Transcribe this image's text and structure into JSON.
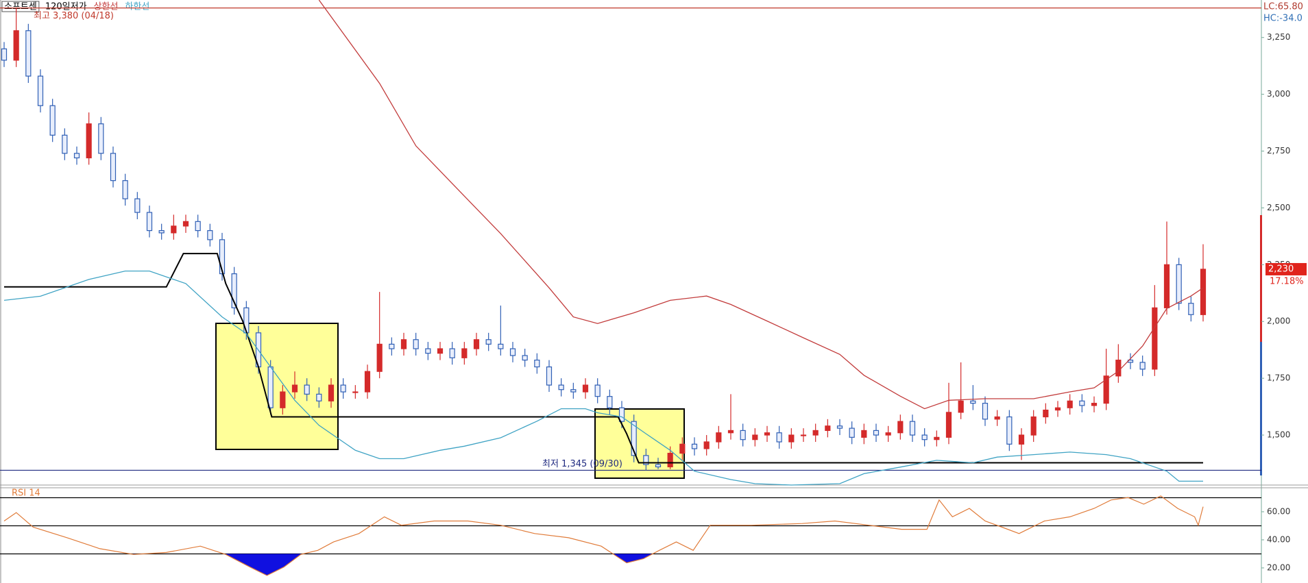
{
  "chart_data": [
    {
      "type": "candlestick",
      "title": "소프트센",
      "xlim": [
        0,
        99
      ],
      "ylim": [
        1280,
        3415
      ],
      "yticks": [
        {
          "value": 1500,
          "label": "1,500"
        },
        {
          "value": 1750,
          "label": "1,750"
        },
        {
          "value": 2000,
          "label": "2,000"
        },
        {
          "value": 2250,
          "label": "2,250"
        },
        {
          "value": 2500,
          "label": "2,500"
        },
        {
          "value": 2750,
          "label": "2,750"
        },
        {
          "value": 3000,
          "label": "3,000"
        },
        {
          "value": 3250,
          "label": "3,250"
        }
      ],
      "up_color": "#d42a2a",
      "down_color": "#2f5fb5",
      "open": [
        3200,
        3150,
        3280,
        3080,
        2950,
        2820,
        2740,
        2720,
        2870,
        2740,
        2620,
        2540,
        2480,
        2400,
        2390,
        2420,
        2440,
        2400,
        2360,
        2210,
        2060,
        1950,
        1800,
        1620,
        1690,
        1720,
        1680,
        1650,
        1720,
        1690,
        1690,
        1780,
        1900,
        1880,
        1920,
        1880,
        1860,
        1880,
        1840,
        1880,
        1920,
        1900,
        1880,
        1850,
        1830,
        1800,
        1720,
        1700,
        1690,
        1720,
        1670,
        1620,
        1560,
        1410,
        1370,
        1360,
        1420,
        1460,
        1440,
        1470,
        1510,
        1520,
        1480,
        1500,
        1510,
        1470,
        1500,
        1500,
        1520,
        1540,
        1530,
        1490,
        1520,
        1500,
        1510,
        1560,
        1500,
        1480,
        1490,
        1600,
        1650,
        1640,
        1570,
        1580,
        1460,
        1500,
        1580,
        1610,
        1620,
        1650,
        1630,
        1640,
        1760,
        1830,
        1820,
        1790,
        2060,
        2250,
        2080,
        2030
      ],
      "high": [
        3230,
        3380,
        3310,
        3110,
        2980,
        2850,
        2770,
        2920,
        2900,
        2770,
        2650,
        2570,
        2510,
        2430,
        2470,
        2470,
        2470,
        2430,
        2390,
        2240,
        2090,
        1980,
        1830,
        1720,
        1780,
        1750,
        1710,
        1750,
        1750,
        1720,
        1810,
        2130,
        1930,
        1950,
        1950,
        1910,
        1910,
        1910,
        1910,
        1950,
        1950,
        2070,
        1910,
        1880,
        1860,
        1830,
        1750,
        1730,
        1750,
        1750,
        1700,
        1650,
        1590,
        1440,
        1400,
        1450,
        1490,
        1490,
        1500,
        1540,
        1680,
        1550,
        1530,
        1540,
        1540,
        1530,
        1530,
        1550,
        1570,
        1570,
        1560,
        1550,
        1550,
        1540,
        1590,
        1590,
        1530,
        1520,
        1730,
        1820,
        1720,
        1670,
        1610,
        1610,
        1530,
        1610,
        1640,
        1650,
        1680,
        1680,
        1670,
        1880,
        1900,
        1860,
        1850,
        2160,
        2440,
        2280,
        2110,
        2340
      ],
      "low": [
        3120,
        3120,
        3050,
        2920,
        2790,
        2710,
        2690,
        2690,
        2710,
        2590,
        2510,
        2450,
        2370,
        2360,
        2360,
        2390,
        2370,
        2330,
        2180,
        2030,
        1920,
        1770,
        1590,
        1590,
        1660,
        1650,
        1620,
        1620,
        1660,
        1660,
        1660,
        1750,
        1850,
        1850,
        1850,
        1830,
        1830,
        1810,
        1810,
        1850,
        1870,
        1850,
        1820,
        1800,
        1770,
        1690,
        1670,
        1660,
        1660,
        1640,
        1590,
        1530,
        1380,
        1345,
        1350,
        1350,
        1390,
        1410,
        1410,
        1440,
        1480,
        1450,
        1450,
        1470,
        1440,
        1440,
        1470,
        1470,
        1490,
        1500,
        1460,
        1460,
        1470,
        1470,
        1480,
        1470,
        1450,
        1450,
        1460,
        1570,
        1610,
        1540,
        1540,
        1430,
        1390,
        1470,
        1550,
        1580,
        1590,
        1600,
        1600,
        1610,
        1730,
        1790,
        1760,
        1760,
        2030,
        2050,
        2000,
        2000
      ],
      "close": [
        3150,
        3280,
        3080,
        2950,
        2820,
        2740,
        2720,
        2870,
        2740,
        2620,
        2540,
        2480,
        2400,
        2390,
        2420,
        2440,
        2400,
        2360,
        2210,
        2060,
        1950,
        1800,
        1620,
        1690,
        1720,
        1680,
        1650,
        1720,
        1690,
        1690,
        1780,
        1900,
        1880,
        1920,
        1880,
        1860,
        1880,
        1840,
        1880,
        1920,
        1900,
        1880,
        1850,
        1830,
        1800,
        1720,
        1700,
        1690,
        1720,
        1670,
        1620,
        1560,
        1410,
        1370,
        1360,
        1420,
        1460,
        1440,
        1470,
        1510,
        1520,
        1480,
        1500,
        1510,
        1470,
        1500,
        1500,
        1520,
        1540,
        1530,
        1490,
        1520,
        1500,
        1510,
        1560,
        1500,
        1480,
        1490,
        1600,
        1650,
        1640,
        1570,
        1580,
        1460,
        1500,
        1580,
        1610,
        1620,
        1650,
        1630,
        1640,
        1760,
        1830,
        1820,
        1790,
        2060,
        2250,
        2080,
        2030,
        2230
      ],
      "series": [
        {
          "name": "120일저가",
          "color": "#000000",
          "x": [
            0,
            13.4,
            14.8,
            17.6,
            18.3,
            19.7,
            21,
            22.1,
            50.7,
            51.4,
            52.4,
            99
          ],
          "values": [
            2152,
            2152,
            2299,
            2299,
            2167,
            2002,
            1800,
            1580,
            1580,
            1506,
            1378,
            1378
          ]
        },
        {
          "name": "상한선",
          "color": "#c23b3b",
          "x": [
            26,
            31,
            34,
            38,
            41,
            45,
            47,
            49,
            52,
            55,
            58,
            60,
            63,
            66,
            69,
            71,
            74,
            76,
            78,
            81,
            85,
            88,
            90,
            92,
            94,
            96,
            98,
            99
          ],
          "values": [
            3415,
            3048,
            2773,
            2552,
            2387,
            2148,
            2020,
            1991,
            2038,
            2093,
            2112,
            2075,
            2002,
            1928,
            1855,
            1763,
            1671,
            1616,
            1653,
            1660,
            1660,
            1690,
            1708,
            1781,
            1892,
            2057,
            2112,
            2148
          ]
        },
        {
          "name": "하한선",
          "color": "#3fa3c4",
          "x": [
            0,
            3,
            7,
            10,
            12,
            15,
            18,
            20,
            22,
            24,
            26,
            29,
            31,
            33,
            36,
            38,
            41,
            44,
            46,
            48,
            49,
            51,
            53,
            55,
            57,
            60,
            62,
            65,
            69,
            71,
            74,
            77,
            80,
            82,
            85,
            88,
            91,
            93,
            96,
            97,
            99
          ],
          "values": [
            2093,
            2111,
            2185,
            2222,
            2222,
            2167,
            2020,
            1947,
            1800,
            1653,
            1543,
            1433,
            1396,
            1396,
            1433,
            1451,
            1488,
            1561,
            1616,
            1616,
            1598,
            1580,
            1506,
            1433,
            1341,
            1304,
            1286,
            1280,
            1286,
            1330,
            1359,
            1389,
            1378,
            1403,
            1414,
            1425,
            1414,
            1396,
            1341,
            1297,
            1297
          ]
        }
      ],
      "annotations": [
        {
          "text": "최고 3,380 (04/18)",
          "value": 3380,
          "color": "#c0392b"
        },
        {
          "text": "최저 1,345 (09/30)",
          "value": 1345,
          "color": "#1f2a80"
        }
      ],
      "last_price": {
        "value": 2230,
        "label": "2,230"
      },
      "change": {
        "value": 17.18,
        "label": "17.18%"
      },
      "lc": "LC:65.80",
      "hc": "HC:-34.0"
    },
    {
      "type": "line",
      "title": "RSI 14",
      "color": "#e07b39",
      "xlim": [
        0,
        99
      ],
      "ylim": [
        10.7,
        76.6
      ],
      "yticks": [
        {
          "value": 20,
          "label": "20.00"
        },
        {
          "value": 40,
          "label": "40.00"
        },
        {
          "value": 60,
          "label": "60.00"
        }
      ],
      "levels": [
        70,
        50,
        30
      ],
      "fill_below": {
        "level": 30,
        "color": "#1010e0"
      },
      "x": [
        0,
        1,
        2.4,
        5.2,
        7.9,
        10.7,
        13.4,
        16.2,
        18.3,
        20.3,
        21.7,
        23.1,
        24.5,
        25.9,
        27.2,
        29.3,
        31.4,
        32.8,
        35.5,
        38.3,
        41,
        43.8,
        46.6,
        49.3,
        51.4,
        52.8,
        54.1,
        55.5,
        56.9,
        58.3,
        61.7,
        65.9,
        68.6,
        71.4,
        74.1,
        76.2,
        77.2,
        78.3,
        79.7,
        81,
        82.4,
        83.8,
        85.9,
        88,
        90,
        91.4,
        92.8,
        94.1,
        95.5,
        96.9,
        98.3,
        98.6,
        99
      ],
      "values": [
        53.4,
        59.4,
        49,
        41.5,
        33.7,
        29.6,
        31,
        35.5,
        29.6,
        20.6,
        14.6,
        20.6,
        29.6,
        32.5,
        38.5,
        44.5,
        56.4,
        50.4,
        53.4,
        53.4,
        50.4,
        44.5,
        41.5,
        35.5,
        23.6,
        26.6,
        32.5,
        38.5,
        32.5,
        50.4,
        50.4,
        51.6,
        53.4,
        50.4,
        47.5,
        47.5,
        68.4,
        56.4,
        62.4,
        53.4,
        49,
        44.5,
        53.4,
        56.4,
        62.4,
        68.4,
        70.1,
        65.4,
        71.3,
        62.4,
        56.4,
        50.4,
        63.6
      ]
    }
  ]
}
